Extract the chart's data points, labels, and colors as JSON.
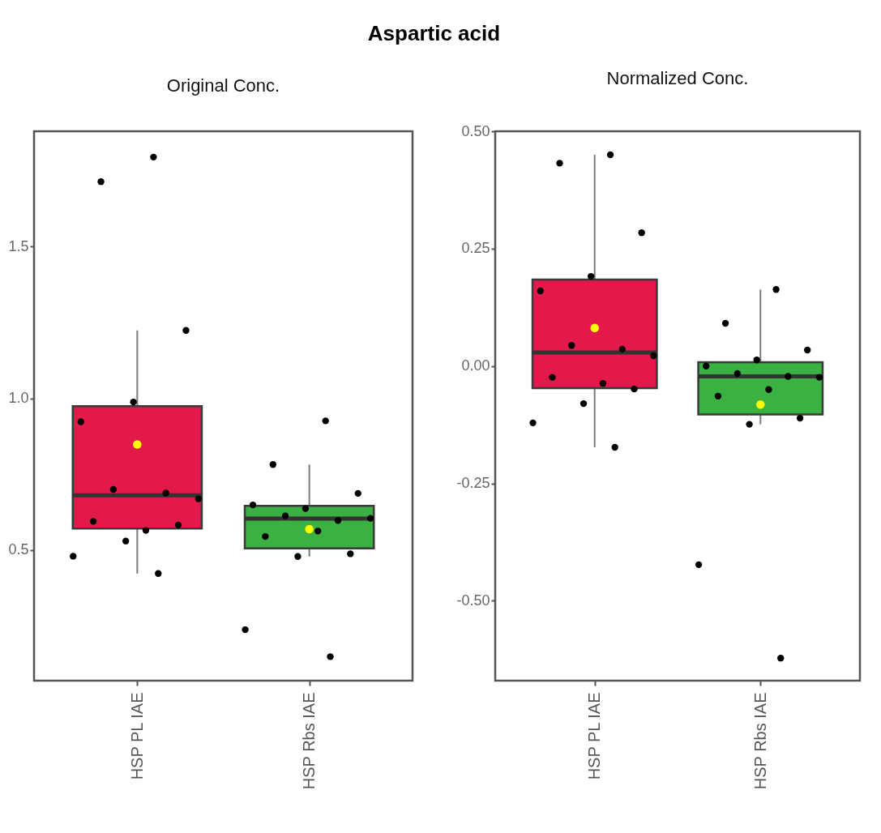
{
  "chart_data": [
    {
      "type": "box",
      "title": "Aspartic acid",
      "subtitle": "Original Conc.",
      "categories": [
        "HSP PL IAE",
        "HSP Rbs IAE"
      ],
      "ylim": [
        0.07,
        1.88
      ],
      "yticks": [
        0.5,
        {
          "value": 1,
          "label": "1.0"
        },
        1.5
      ],
      "series": [
        {
          "type": "box",
          "colors": [
            "#e3194b",
            "#3bb143"
          ],
          "boxes": [
            {
              "low": 0.423,
              "q1": 0.571,
              "median": 0.681,
              "q3": 0.974,
              "high": 1.224,
              "mean": 0.848
            },
            {
              "low": 0.479,
              "q1": 0.506,
              "median": 0.604,
              "q3": 0.646,
              "high": 0.782,
              "mean": 0.569
            }
          ]
        },
        {
          "type": "scatter",
          "color": "#000000",
          "x": [
            "HSP PL IAE",
            "HSP PL IAE",
            "HSP PL IAE",
            "HSP PL IAE",
            "HSP PL IAE",
            "HSP PL IAE",
            "HSP PL IAE",
            "HSP PL IAE",
            "HSP PL IAE",
            "HSP PL IAE",
            "HSP PL IAE",
            "HSP PL IAE",
            "HSP PL IAE",
            "HSP PL IAE",
            "HSP Rbs IAE",
            "HSP Rbs IAE",
            "HSP Rbs IAE",
            "HSP Rbs IAE",
            "HSP Rbs IAE",
            "HSP Rbs IAE",
            "HSP Rbs IAE",
            "HSP Rbs IAE",
            "HSP Rbs IAE",
            "HSP Rbs IAE",
            "HSP Rbs IAE",
            "HSP Rbs IAE",
            "HSP Rbs IAE",
            "HSP Rbs IAE"
          ],
          "values": [
            1.795,
            1.714,
            1.224,
            0.988,
            0.923,
            0.688,
            0.7,
            0.669,
            0.565,
            0.595,
            0.583,
            0.53,
            0.48,
            0.423,
            0.926,
            0.782,
            0.687,
            0.637,
            0.649,
            0.598,
            0.613,
            0.605,
            0.563,
            0.545,
            0.488,
            0.479,
            0.238,
            0.149
          ]
        }
      ]
    },
    {
      "type": "box",
      "subtitle": "Normalized Conc.",
      "categories": [
        "HSP PL IAE",
        "HSP Rbs IAE"
      ],
      "ylim": [
        -0.67,
        0.5
      ],
      "yticks": [
        {
          "value": 0.5,
          "label": "0.50"
        },
        {
          "value": 0.25,
          "label": "0.25"
        },
        {
          "value": 0,
          "label": "0.00"
        },
        {
          "value": -0.25,
          "label": "-0.25"
        },
        {
          "value": -0.5,
          "label": "-0.50"
        }
      ],
      "series": [
        {
          "type": "box",
          "colors": [
            "#e3194b",
            "#3bb143"
          ],
          "boxes": [
            {
              "low": -0.173,
              "q1": -0.047,
              "median": 0.029,
              "q3": 0.184,
              "high": 0.45,
              "mean": 0.081
            },
            {
              "low": -0.124,
              "q1": -0.103,
              "median": -0.022,
              "q3": 0.008,
              "high": 0.163,
              "mean": -0.082
            }
          ]
        },
        {
          "type": "scatter",
          "color": "#000000",
          "x": [
            "HSP PL IAE",
            "HSP PL IAE",
            "HSP PL IAE",
            "HSP PL IAE",
            "HSP PL IAE",
            "HSP PL IAE",
            "HSP PL IAE",
            "HSP PL IAE",
            "HSP PL IAE",
            "HSP PL IAE",
            "HSP PL IAE",
            "HSP PL IAE",
            "HSP PL IAE",
            "HSP PL IAE",
            "HSP Rbs IAE",
            "HSP Rbs IAE",
            "HSP Rbs IAE",
            "HSP Rbs IAE",
            "HSP Rbs IAE",
            "HSP Rbs IAE",
            "HSP Rbs IAE",
            "HSP Rbs IAE",
            "HSP Rbs IAE",
            "HSP Rbs IAE",
            "HSP Rbs IAE",
            "HSP Rbs IAE",
            "HSP Rbs IAE",
            "HSP Rbs IAE"
          ],
          "values": [
            0.45,
            0.432,
            0.284,
            0.191,
            0.16,
            0.036,
            0.044,
            0.022,
            -0.037,
            -0.024,
            -0.049,
            -0.08,
            -0.121,
            -0.173,
            0.163,
            0.091,
            0.034,
            0.013,
            0.0,
            -0.022,
            -0.016,
            -0.024,
            -0.05,
            -0.064,
            -0.111,
            -0.124,
            -0.423,
            -0.622
          ]
        }
      ]
    }
  ]
}
